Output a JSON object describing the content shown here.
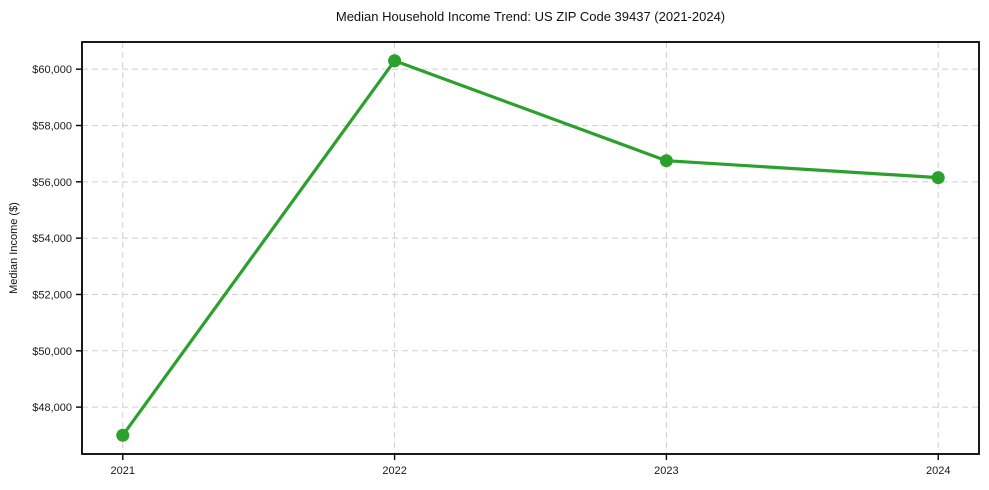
{
  "figure": {
    "title": "Median Household Income Trend: US ZIP Code 39437 (2021-2024)",
    "y_axis_label": "Median Income ($)"
  },
  "chart_data": {
    "type": "line",
    "title": "Median Household Income Trend: US ZIP Code 39437 (2021-2024)",
    "xlabel": "",
    "ylabel": "Median Income ($)",
    "x": [
      2021,
      2022,
      2023,
      2024
    ],
    "x_tick_labels": [
      "2021",
      "2022",
      "2023",
      "2024"
    ],
    "values": [
      47000,
      60300,
      56750,
      56150
    ],
    "y_ticks": [
      48000,
      50000,
      52000,
      54000,
      56000,
      58000,
      60000
    ],
    "y_tick_labels": [
      "$48,000",
      "$50,000",
      "$52,000",
      "$54,000",
      "$56,000",
      "$58,000",
      "$60,000"
    ],
    "xlim": [
      2020.85,
      2024.15
    ],
    "ylim": [
      46335,
      60965
    ],
    "grid": true,
    "grid_linestyle": "dashed",
    "legend_position": "none",
    "line_color": "#2ca02c",
    "marker": "circle",
    "grid_color": "#cfcfcf",
    "axis_color": "#000000",
    "tick_label_color": "#1a1a1a",
    "background_color": "#ffffff"
  }
}
